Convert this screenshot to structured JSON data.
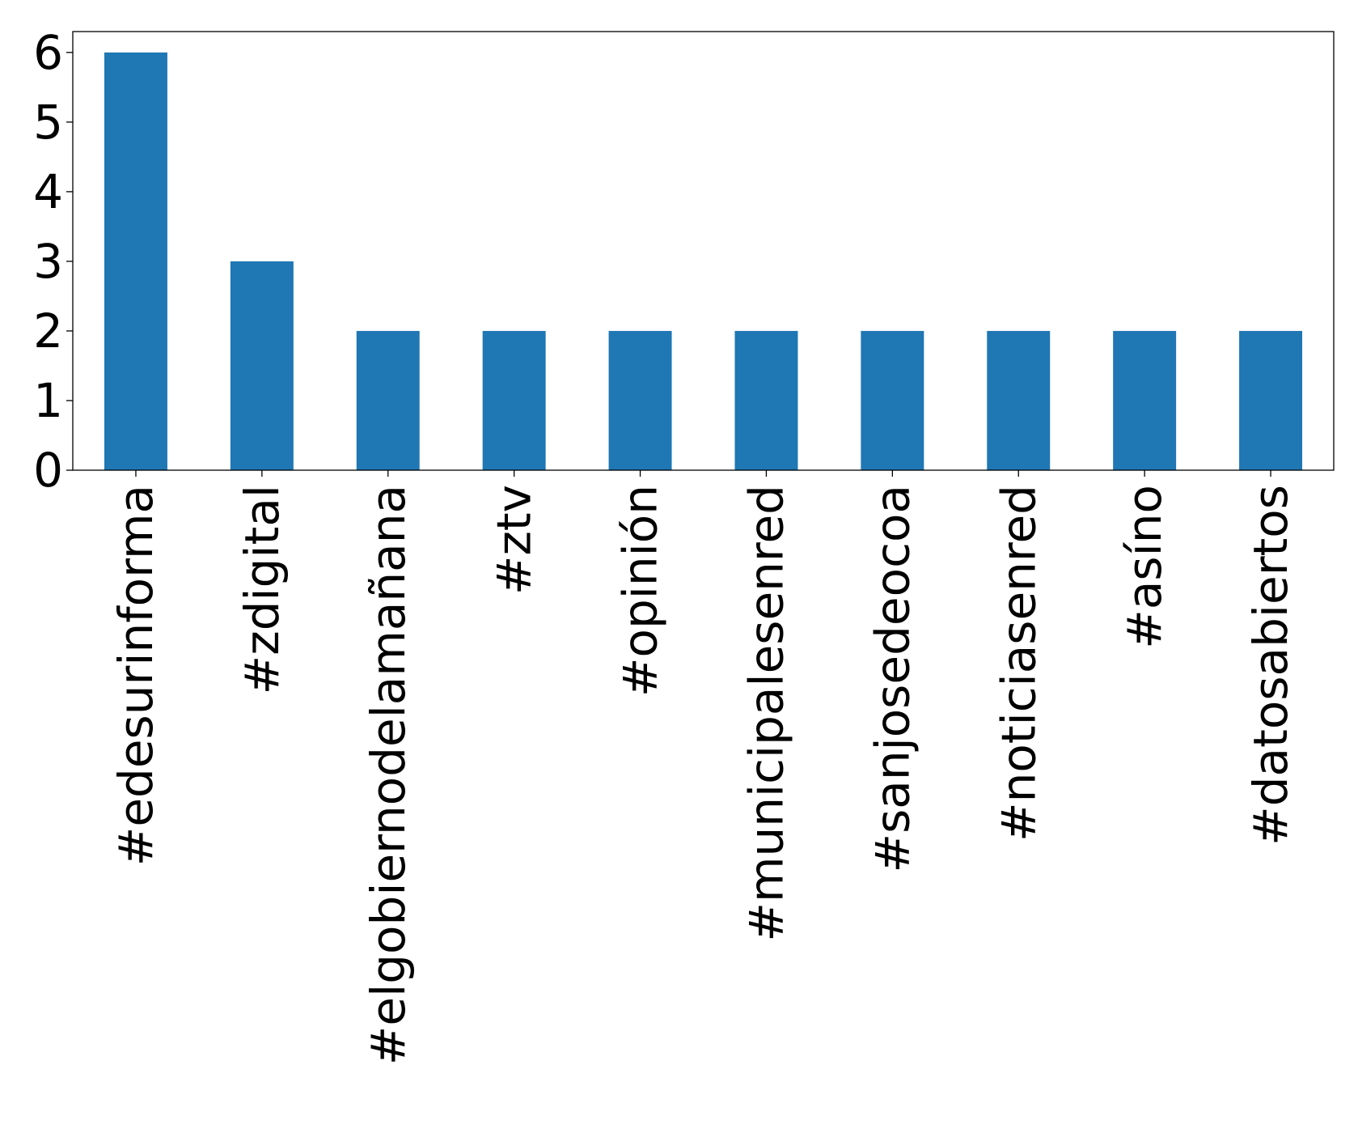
{
  "chart_data": {
    "type": "bar",
    "categories": [
      "#edesurinforma",
      "#zdigital",
      "#elgobiernodelamañana",
      "#ztv",
      "#opinión",
      "#municipalesenred",
      "#sanjosedeocoa",
      "#noticiasenred",
      "#asíno",
      "#datosabiertos"
    ],
    "values": [
      6,
      3,
      2,
      2,
      2,
      2,
      2,
      2,
      2,
      2
    ],
    "yticks": [
      0,
      1,
      2,
      3,
      4,
      5,
      6
    ],
    "ylim": [
      0,
      6.3
    ],
    "title": "",
    "xlabel": "",
    "ylabel": "",
    "grid": false,
    "bar_color": "#1f77b4"
  }
}
